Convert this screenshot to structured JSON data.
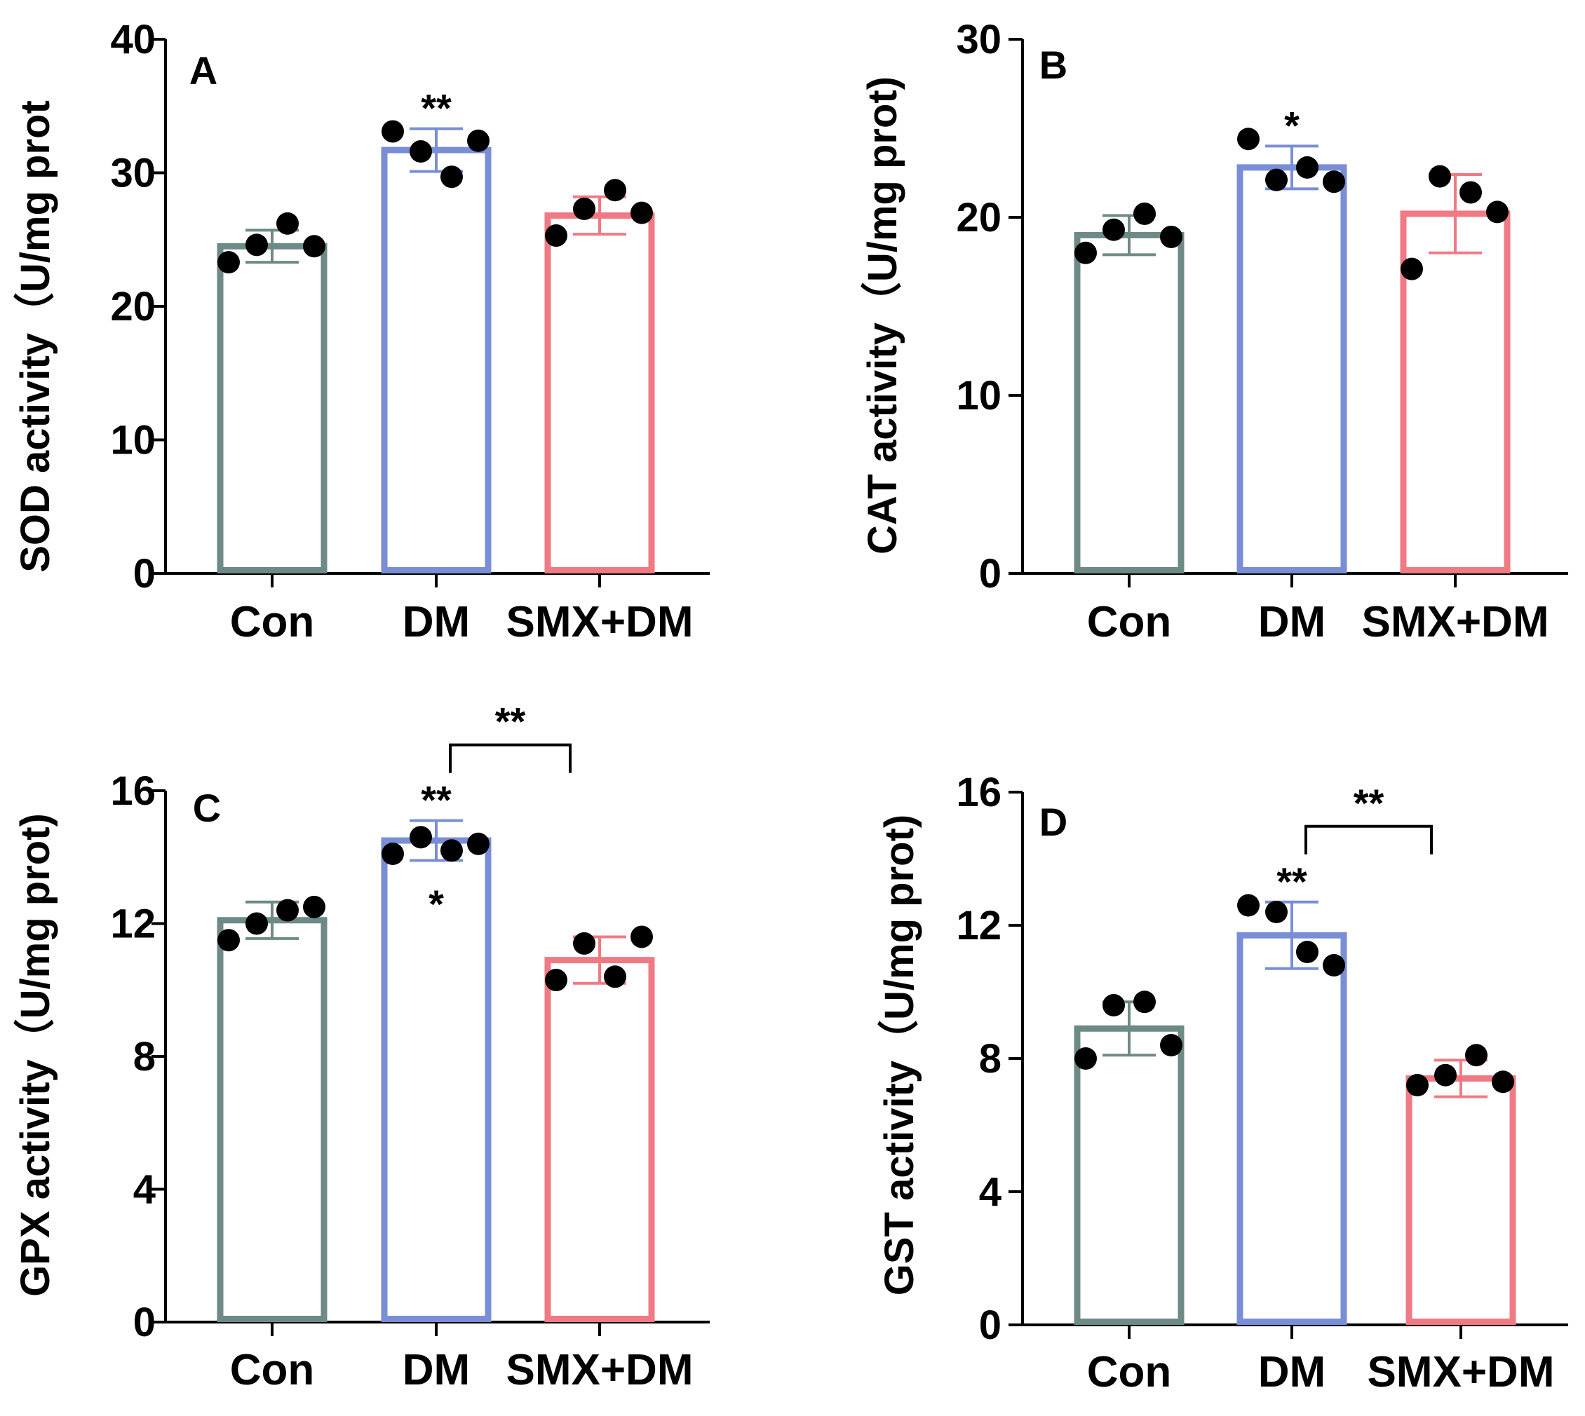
{
  "figure": {
    "colors": {
      "con": "#6e8a86",
      "dm": "#7a8ed6",
      "smx_dm": "#f07a84",
      "axis": "#000000",
      "point": "#000000"
    }
  },
  "chart_data": [
    {
      "panel_label": "A",
      "type": "bar",
      "ylabel": "SOD activity（U/mg prot",
      "ylim": [
        0,
        40
      ],
      "yticks": [
        "0",
        "10",
        "20",
        "30",
        "40"
      ],
      "categories": [
        "Con",
        "DM",
        "SMX+DM"
      ],
      "values": [
        24.5,
        31.7,
        26.8
      ],
      "error": [
        1.2,
        1.6,
        1.4
      ],
      "points": [
        [
          23.3,
          24.6,
          26.2,
          24.5
        ],
        [
          33.1,
          31.6,
          29.7,
          32.4
        ],
        [
          25.3,
          27.3,
          28.7,
          27.0
        ]
      ],
      "significance": [
        {
          "bar": 1,
          "label": "**"
        }
      ],
      "brackets": []
    },
    {
      "panel_label": "B",
      "type": "bar",
      "ylabel": "CAT activity（U/mg prot)",
      "ylim": [
        0,
        30
      ],
      "yticks": [
        "0",
        "10",
        "20",
        "30"
      ],
      "categories": [
        "Con",
        "DM",
        "SMX+DM"
      ],
      "values": [
        19.0,
        22.8,
        20.2
      ],
      "error": [
        1.1,
        1.2,
        2.2
      ],
      "points": [
        [
          18.0,
          19.3,
          20.2,
          18.9
        ],
        [
          24.4,
          22.1,
          22.8,
          22.0
        ],
        [
          17.1,
          22.3,
          21.4,
          20.3
        ]
      ],
      "significance": [
        {
          "bar": 1,
          "label": "*"
        }
      ],
      "brackets": []
    },
    {
      "panel_label": "C",
      "type": "bar",
      "ylabel": "GPX activity（U/mg prot)",
      "ylim": [
        0,
        16
      ],
      "yticks": [
        "0",
        "4",
        "8",
        "12",
        "16"
      ],
      "categories": [
        "Con",
        "DM",
        "SMX+DM"
      ],
      "values": [
        12.1,
        14.5,
        10.9
      ],
      "error": [
        0.55,
        0.6,
        0.7
      ],
      "points": [
        [
          11.5,
          12.0,
          12.4,
          12.5
        ],
        [
          14.1,
          14.6,
          14.2,
          14.4
        ],
        [
          10.3,
          11.4,
          10.4,
          11.6
        ]
      ],
      "significance": [
        {
          "bar": 1,
          "label": "**"
        },
        {
          "bar": 1,
          "label": "*",
          "position": "below"
        }
      ],
      "brackets": [
        {
          "from": 1,
          "to": 2,
          "label": "**"
        }
      ]
    },
    {
      "panel_label": "D",
      "type": "bar",
      "ylabel": "GST activity（U/mg prot)",
      "ylim": [
        0,
        16
      ],
      "yticks": [
        "0",
        "4",
        "8",
        "12",
        "16"
      ],
      "categories": [
        "Con",
        "DM",
        "SMX+DM"
      ],
      "values": [
        8.9,
        11.7,
        7.4
      ],
      "error": [
        0.8,
        1.0,
        0.55
      ],
      "points": [
        [
          8.0,
          9.6,
          9.7,
          8.4
        ],
        [
          12.6,
          12.4,
          11.2,
          10.8
        ],
        [
          7.2,
          7.5,
          8.1,
          7.3
        ]
      ],
      "significance": [
        {
          "bar": 1,
          "label": "**"
        }
      ],
      "brackets": [
        {
          "from": 1,
          "to": 2,
          "label": "**"
        }
      ]
    }
  ]
}
